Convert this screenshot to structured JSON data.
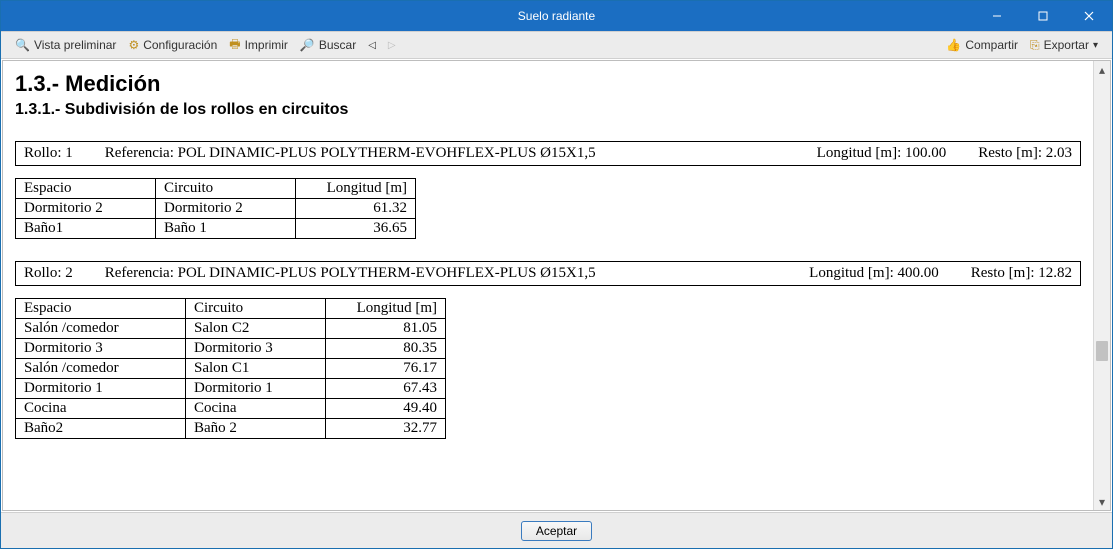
{
  "window": {
    "title": "Suelo radiante"
  },
  "toolbar": {
    "preview": "Vista preliminar",
    "config": "Configuración",
    "print": "Imprimir",
    "search": "Buscar",
    "share": "Compartir",
    "export": "Exportar"
  },
  "section": {
    "heading": "1.3.- Medición",
    "subheading": "1.3.1.- Subdivisión de los rollos en circuitos"
  },
  "labels": {
    "rollo": "Rollo:",
    "referencia": "Referencia:",
    "longitud": "Longitud [m]:",
    "resto": "Resto [m]:",
    "col_espacio": "Espacio",
    "col_circuito": "Circuito",
    "col_longitud": "Longitud [m]"
  },
  "rolls": [
    {
      "num": "1",
      "referencia": "POL DINAMIC-PLUS POLYTHERM-EVOHFLEX-PLUS Ø15X1,5",
      "longitud": "100.00",
      "resto": "2.03",
      "rows": [
        {
          "espacio": "Dormitorio 2",
          "circuito": "Dormitorio 2",
          "longitud": "61.32"
        },
        {
          "espacio": "Baño1",
          "circuito": "Baño 1",
          "longitud": "36.65"
        }
      ]
    },
    {
      "num": "2",
      "referencia": "POL DINAMIC-PLUS POLYTHERM-EVOHFLEX-PLUS Ø15X1,5",
      "longitud": "400.00",
      "resto": "12.82",
      "rows": [
        {
          "espacio": "Salón /comedor",
          "circuito": "Salon C2",
          "longitud": "81.05"
        },
        {
          "espacio": "Dormitorio 3",
          "circuito": "Dormitorio 3",
          "longitud": "80.35"
        },
        {
          "espacio": "Salón /comedor",
          "circuito": "Salon C1",
          "longitud": "76.17"
        },
        {
          "espacio": "Dormitorio 1",
          "circuito": "Dormitorio 1",
          "longitud": "67.43"
        },
        {
          "espacio": "Cocina",
          "circuito": "Cocina",
          "longitud": "49.40"
        },
        {
          "espacio": "Baño2",
          "circuito": "Baño 2",
          "longitud": "32.77"
        }
      ]
    }
  ],
  "footer": {
    "accept": "Aceptar"
  },
  "colors": {
    "titlebar": "#1b6ec2",
    "toolbar_bg": "#ececec",
    "border": "#bdbdbd"
  }
}
